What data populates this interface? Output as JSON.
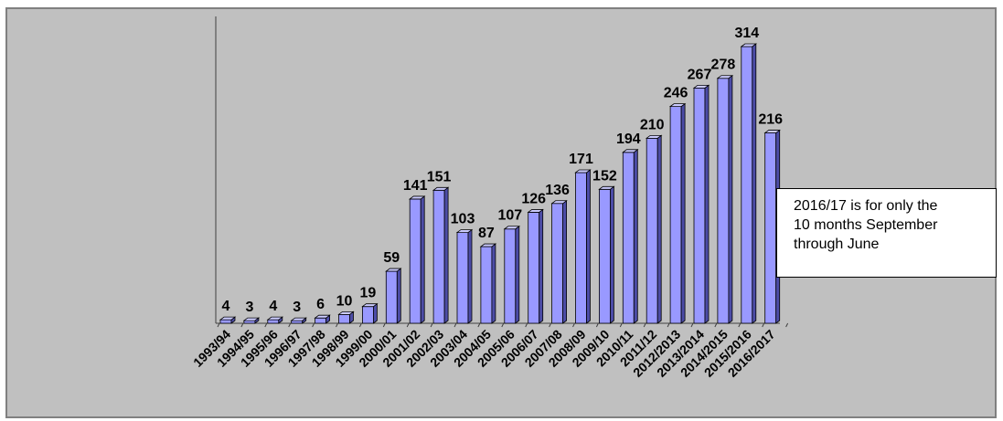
{
  "chart_data": {
    "type": "bar",
    "style": "3d-column",
    "categories": [
      "1993/94",
      "1994/95",
      "1995/96",
      "1996/97",
      "1997/98",
      "1998/99",
      "1999/00",
      "2000/01",
      "2001/02",
      "2002/03",
      "2003/04",
      "2004/05",
      "2005/06",
      "2006/07",
      "2007/08",
      "2008/09",
      "2009/10",
      "2010/11",
      "2011/12",
      "2012/2013",
      "2013/2014",
      "2014/2015",
      "2015/2016",
      "2016/2017"
    ],
    "values": [
      4,
      3,
      4,
      3,
      6,
      10,
      19,
      59,
      141,
      151,
      103,
      87,
      107,
      126,
      136,
      171,
      152,
      194,
      210,
      246,
      267,
      278,
      314,
      216
    ],
    "title": "",
    "xlabel": "",
    "ylabel": "",
    "ylim": [
      0,
      350
    ],
    "grid": false,
    "legend": "none",
    "data_labels": true,
    "colors": {
      "bar_front": "#9999ff",
      "bar_side": "#4c4ca6",
      "bar_top": "#ccccff",
      "plot_background": "#c0c0c0"
    }
  },
  "annotation": {
    "line1": "2016/17 is for only the",
    "line2": "10 months September",
    "line3": "through June"
  }
}
